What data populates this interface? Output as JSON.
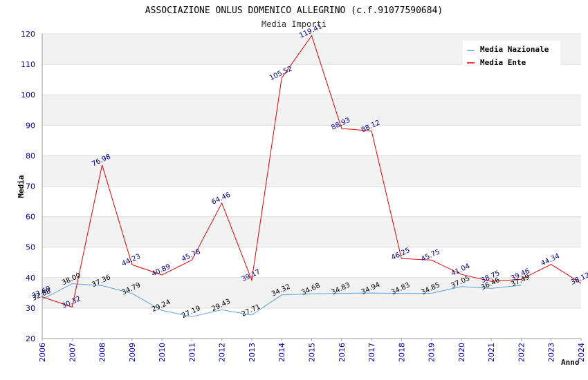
{
  "chart_data": {
    "type": "line",
    "title": "ASSOCIAZIONE ONLUS DOMENICO ALLEGRINO (c.f.91077590684)",
    "subtitle": "Media Importi",
    "xlabel": "Anno",
    "ylabel": "Media",
    "ylim": [
      20,
      120
    ],
    "yticks": [
      20,
      30,
      40,
      50,
      60,
      70,
      80,
      90,
      100,
      110,
      120
    ],
    "x": [
      "2006",
      "2007",
      "2008",
      "2009",
      "2010",
      "2011",
      "2012",
      "2013",
      "2014",
      "2015",
      "2016",
      "2017",
      "2018",
      "2019",
      "2020",
      "2021",
      "2022",
      "2023",
      "2024"
    ],
    "legend_position": "top-right",
    "grid": true,
    "series": [
      {
        "name": "Media Nazionale",
        "color": "#5aa0e0",
        "label_color": "#000000",
        "values": [
          32.88,
          38.0,
          37.36,
          34.79,
          29.24,
          27.19,
          29.43,
          27.71,
          34.32,
          34.68,
          34.83,
          34.94,
          34.83,
          34.85,
          37.05,
          36.46,
          37.49,
          null,
          null
        ],
        "labels": [
          "32.88",
          "38.00",
          "37.36",
          "34.79",
          "29.24",
          "27.19",
          "29.43",
          "27.71",
          "34.32",
          "34.68",
          "34.83",
          "34.94",
          "34.83",
          "34.85",
          "37.05",
          "36.46",
          "37.49",
          "",
          ""
        ]
      },
      {
        "name": "Media Ente",
        "color": "#e00000",
        "label_color": "#000080",
        "values": [
          33.69,
          30.32,
          76.98,
          44.23,
          40.89,
          45.78,
          64.46,
          39.17,
          105.52,
          119.41,
          88.93,
          88.12,
          46.25,
          45.75,
          41.04,
          38.75,
          39.46,
          44.34,
          38.12
        ],
        "labels": [
          "33.69",
          "30.32",
          "76.98",
          "44.23",
          "40.89",
          "45.78",
          "64.46",
          "39.17",
          "105.52",
          "119.41",
          "88.93",
          "88.12",
          "46.25",
          "45.75",
          "41.04",
          "38.75",
          "39.46",
          "44.34",
          "38.12"
        ]
      }
    ]
  }
}
